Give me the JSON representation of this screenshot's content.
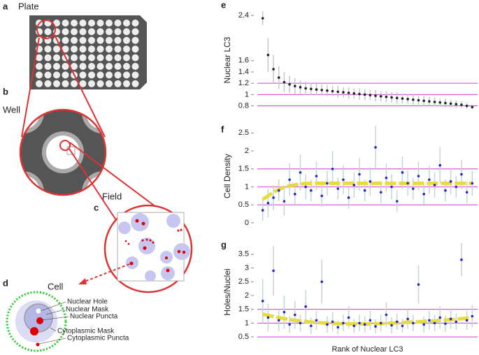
{
  "panel_labels": [
    "a",
    "b",
    "c",
    "d",
    "e",
    "f",
    "g"
  ],
  "diagram": {
    "plate": "Plate",
    "well": "Well",
    "field": "Field",
    "cell": "Cell",
    "cell_parts": [
      "Nuclear Hole",
      "Nuclear Mask",
      "Nuclear Puncta",
      "Cytoplasmic Mask",
      "Cytoplasmic Puncta"
    ]
  },
  "chart_data": [
    {
      "type": "scatter",
      "ylabel": "Nuclear LC3",
      "x": [
        1,
        2,
        3,
        4,
        5,
        6,
        7,
        8,
        9,
        10,
        11,
        12,
        13,
        14,
        15,
        16,
        17,
        18,
        19,
        20,
        21,
        22,
        23,
        24,
        25,
        26,
        27,
        28,
        29,
        30,
        31,
        32,
        33,
        34,
        35,
        36,
        37,
        38,
        39,
        40
      ],
      "values": [
        2.35,
        1.7,
        1.45,
        1.3,
        1.22,
        1.18,
        1.15,
        1.13,
        1.11,
        1.1,
        1.09,
        1.08,
        1.07,
        1.06,
        1.05,
        1.04,
        1.03,
        1.02,
        1.01,
        1.0,
        0.99,
        0.98,
        0.97,
        0.96,
        0.95,
        0.94,
        0.93,
        0.92,
        0.91,
        0.9,
        0.89,
        0.88,
        0.87,
        0.86,
        0.85,
        0.84,
        0.83,
        0.82,
        0.8,
        0.78
      ],
      "errors": [
        0.12,
        0.3,
        0.25,
        0.2,
        0.18,
        0.15,
        0.14,
        0.12,
        0.12,
        0.11,
        0.1,
        0.1,
        0.1,
        0.09,
        0.1,
        0.09,
        0.1,
        0.09,
        0.1,
        0.1,
        0.09,
        0.1,
        0.09,
        0.1,
        0.09,
        0.1,
        0.09,
        0.08,
        0.09,
        0.08,
        0.09,
        0.08,
        0.08,
        0.07,
        0.08,
        0.07,
        0.07,
        0.06,
        0.05,
        0.04
      ],
      "color": "#222222",
      "error_color": "#c4c8cc",
      "reference_lines": [
        0.8,
        1,
        1.2
      ],
      "reference_color": "#d23cd2",
      "xlim": [
        0,
        41
      ],
      "ylim": [
        0.72,
        2.5
      ],
      "yticks": [
        0.8,
        1,
        1.2,
        1.4,
        1.6,
        2.4
      ]
    },
    {
      "type": "scatter",
      "ylabel": "Cell Density",
      "x": [
        1,
        2,
        3,
        4,
        5,
        6,
        7,
        8,
        9,
        10,
        11,
        12,
        13,
        14,
        15,
        16,
        17,
        18,
        19,
        20,
        21,
        22,
        23,
        24,
        25,
        26,
        27,
        28,
        29,
        30,
        31,
        32,
        33,
        34,
        35,
        36,
        37,
        38,
        39,
        40
      ],
      "values": [
        0.35,
        0.55,
        0.7,
        0.9,
        0.6,
        1.2,
        0.8,
        1.4,
        1.0,
        0.9,
        1.3,
        0.75,
        1.1,
        1.5,
        0.95,
        1.2,
        0.7,
        1.05,
        1.35,
        0.9,
        1.15,
        2.1,
        0.85,
        1.25,
        1.0,
        0.6,
        1.4,
        1.1,
        0.95,
        1.3,
        0.8,
        1.2,
        1.05,
        1.6,
        0.9,
        1.15,
        1.0,
        1.35,
        0.85,
        1.1
      ],
      "errors": [
        0.3,
        0.4,
        0.35,
        0.3,
        0.4,
        0.45,
        0.3,
        0.5,
        0.35,
        0.3,
        0.4,
        0.3,
        0.35,
        0.5,
        0.3,
        0.4,
        0.3,
        0.35,
        0.45,
        0.3,
        0.4,
        0.6,
        0.3,
        0.4,
        0.35,
        0.3,
        0.45,
        0.35,
        0.3,
        0.4,
        0.3,
        0.4,
        0.35,
        0.5,
        0.3,
        0.35,
        0.3,
        0.4,
        0.3,
        0.35
      ],
      "color": "#2424cc",
      "error_color": "#c4d4dc",
      "fit": [
        0.65,
        0.75,
        0.85,
        0.93,
        0.99,
        1.03,
        1.06,
        1.08,
        1.09,
        1.1,
        1.1,
        1.1,
        1.1,
        1.1,
        1.1,
        1.1,
        1.1,
        1.1,
        1.1,
        1.1,
        1.1,
        1.1,
        1.1,
        1.1,
        1.1,
        1.1,
        1.1,
        1.1,
        1.1,
        1.1,
        1.1,
        1.1,
        1.1,
        1.1,
        1.1,
        1.1,
        1.1,
        1.1,
        1.1,
        1.1
      ],
      "fit_color": "#e6dc3c",
      "reference_lines": [
        0.5,
        1,
        1.5
      ],
      "reference_color": "#d23cd2",
      "xlim": [
        0,
        41
      ],
      "ylim": [
        -0.1,
        2.7
      ],
      "yticks": [
        0,
        0.5,
        1,
        1.5,
        2,
        2.5
      ]
    },
    {
      "type": "scatter",
      "ylabel": "Holes/Nuclei",
      "xlabel": "Rank of Nuclear LC3",
      "x": [
        1,
        2,
        3,
        4,
        5,
        6,
        7,
        8,
        9,
        10,
        11,
        12,
        13,
        14,
        15,
        16,
        17,
        18,
        19,
        20,
        21,
        22,
        23,
        24,
        25,
        26,
        27,
        28,
        29,
        30,
        31,
        32,
        33,
        34,
        35,
        36,
        37,
        38,
        39,
        40
      ],
      "values": [
        1.8,
        1.2,
        2.9,
        1.1,
        1.4,
        0.95,
        1.3,
        1.0,
        1.6,
        0.9,
        1.1,
        2.5,
        0.95,
        1.05,
        0.85,
        1.0,
        1.2,
        0.9,
        1.0,
        0.95,
        1.1,
        0.88,
        1.0,
        1.3,
        0.92,
        1.05,
        0.9,
        1.15,
        1.0,
        2.4,
        0.95,
        1.1,
        1.0,
        1.2,
        0.98,
        1.15,
        1.05,
        3.3,
        1.1,
        1.25
      ],
      "errors": [
        0.8,
        0.5,
        0.9,
        0.4,
        0.6,
        0.3,
        0.5,
        0.3,
        0.6,
        0.3,
        0.35,
        0.8,
        0.3,
        0.35,
        0.25,
        0.3,
        0.4,
        0.25,
        0.3,
        0.3,
        0.35,
        0.25,
        0.3,
        0.45,
        0.3,
        0.3,
        0.25,
        0.35,
        0.3,
        0.7,
        0.3,
        0.35,
        0.3,
        0.4,
        0.3,
        0.35,
        0.3,
        0.6,
        0.35,
        0.4
      ],
      "color": "#2424cc",
      "error_color": "#c4d4dc",
      "fit": [
        1.32,
        1.28,
        1.24,
        1.2,
        1.16,
        1.13,
        1.1,
        1.08,
        1.06,
        1.04,
        1.02,
        1.01,
        1.0,
        0.99,
        0.98,
        0.98,
        0.97,
        0.97,
        0.97,
        0.97,
        0.97,
        0.98,
        0.98,
        0.99,
        1.0,
        1.01,
        1.02,
        1.03,
        1.04,
        1.05,
        1.06,
        1.07,
        1.08,
        1.1,
        1.11,
        1.13,
        1.14,
        1.16,
        1.18,
        1.2
      ],
      "fit_color": "#e6dc3c",
      "reference_lines": [
        0.5,
        1,
        1.5
      ],
      "reference_color": "#d23cd2",
      "xlim": [
        0,
        41
      ],
      "ylim": [
        0.35,
        3.9
      ],
      "yticks": [
        0.5,
        1,
        1.5,
        2,
        2.5,
        3,
        3.5
      ]
    }
  ]
}
